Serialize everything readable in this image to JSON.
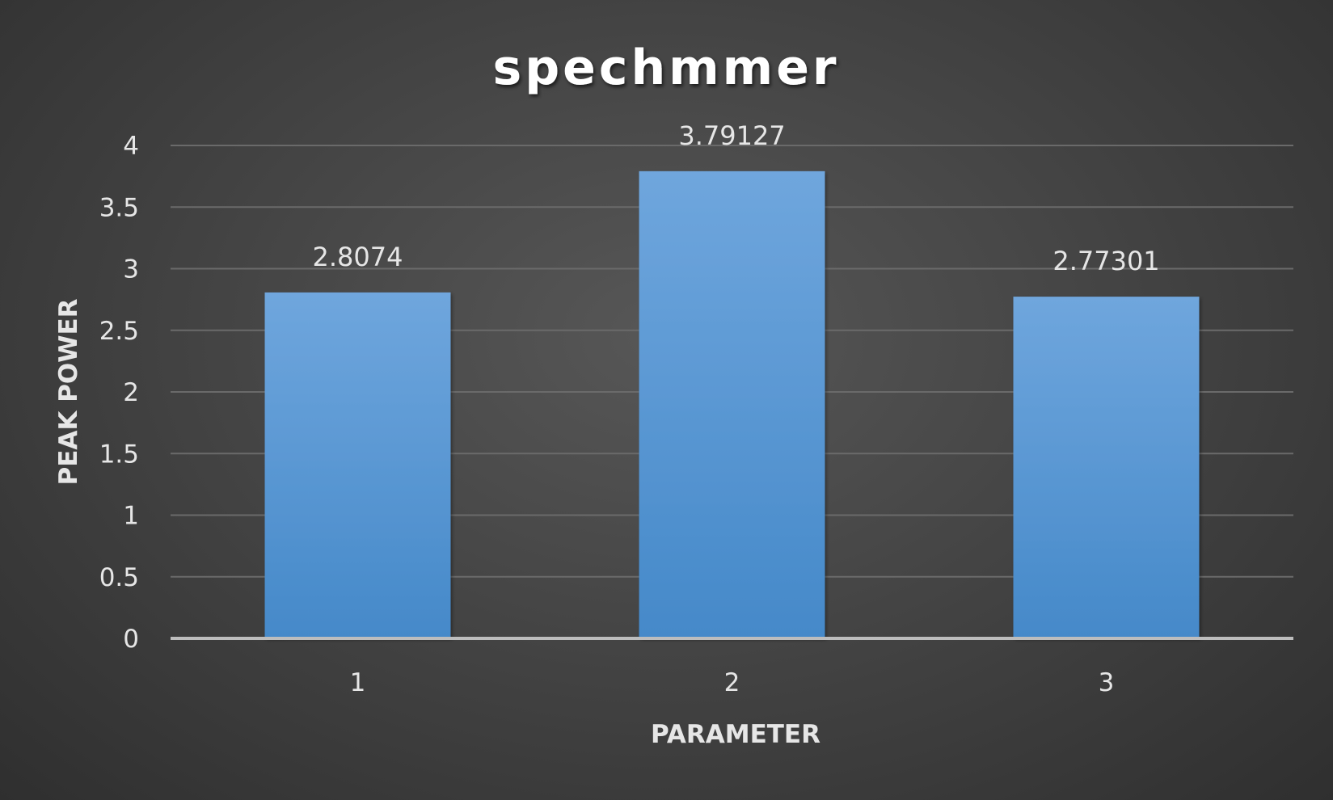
{
  "chart_data": {
    "type": "bar",
    "title": "spechmmer",
    "xlabel": "PARAMETER",
    "ylabel": "PEAK POWER",
    "categories": [
      "1",
      "2",
      "3"
    ],
    "values": [
      2.8074,
      3.79127,
      2.77301
    ],
    "data_labels": [
      "2.8074",
      "3.79127",
      "2.77301"
    ],
    "ylim": [
      0,
      4
    ],
    "yticks": [
      "0",
      "0.5",
      "1",
      "1.5",
      "2",
      "2.5",
      "3",
      "3.5",
      "4"
    ],
    "grid": true,
    "legend": "none",
    "bar_color": "#5b9bd5"
  }
}
